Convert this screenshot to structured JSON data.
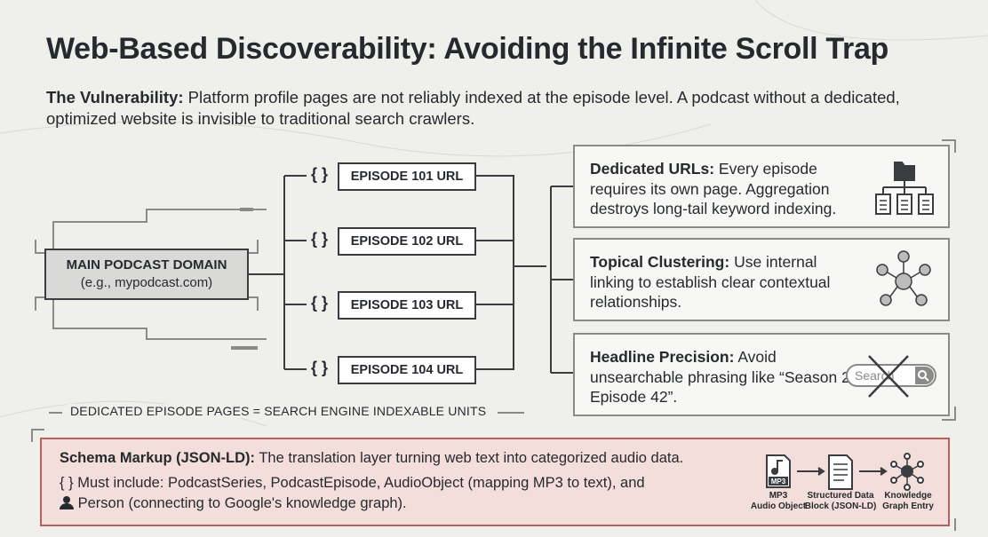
{
  "title": "Web-Based Discoverability: Avoiding the Infinite Scroll Trap",
  "vulnerability": {
    "label": "The Vulnerability:",
    "text": "Platform profile pages are not reliably indexed at the episode level. A podcast without a dedicated, optimized website is invisible to traditional search crawlers."
  },
  "domain": {
    "label": "MAIN PODCAST DOMAIN",
    "example": "(e.g., mypodcast.com)"
  },
  "brace": "{ }",
  "episodes": [
    "EPISODE 101 URL",
    "EPISODE 102 URL",
    "EPISODE 103 URL",
    "EPISODE 104 URL"
  ],
  "caption": "DEDICATED EPISODE PAGES = SEARCH ENGINE INDEXABLE UNITS",
  "cards": [
    {
      "label": "Dedicated URLs:",
      "text": "Every episode requires its own page. Aggregation destroys long-tail keyword indexing."
    },
    {
      "label": "Topical Clustering:",
      "text": "Use internal linking to establish clear contextual relationships."
    },
    {
      "label": "Headline Precision:",
      "text": "Avoid unsearchable phrasing like “Season 2, Episode 42”."
    }
  ],
  "search_placeholder": "Search",
  "schema": {
    "label": "Schema Markup (JSON-LD):",
    "text": "The translation layer turning web text into categorized audio data.",
    "include": "Must include: PodcastSeries, PodcastEpisode, AudioObject (mapping MP3 to text), and",
    "person": "Person (connecting to Google's knowledge graph).",
    "flow": [
      {
        "icon": "MP3",
        "label": [
          "MP3",
          "Audio Object"
        ]
      },
      {
        "label": [
          "Structured Data",
          "Block (JSON-LD)"
        ]
      },
      {
        "label": [
          "Knowledge",
          "Graph Entry"
        ]
      }
    ]
  }
}
